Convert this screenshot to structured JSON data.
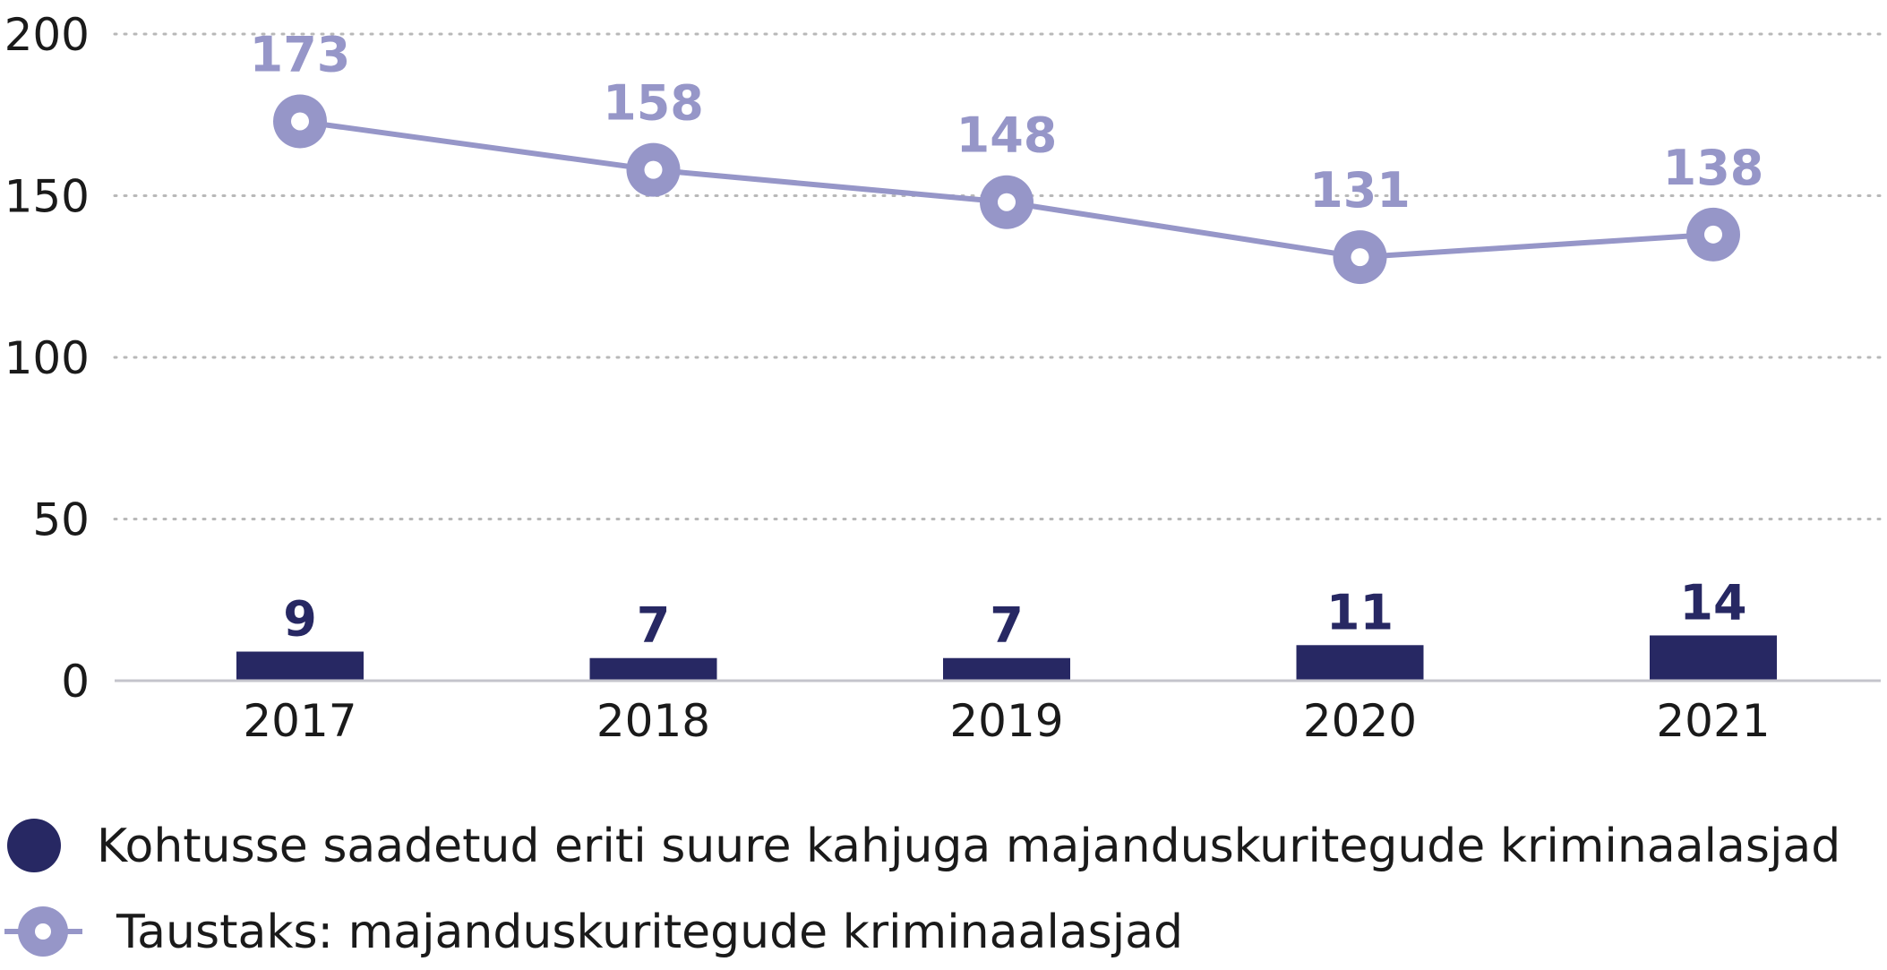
{
  "chart_data": {
    "type": "bar",
    "categories": [
      "2017",
      "2018",
      "2019",
      "2020",
      "2021"
    ],
    "series": [
      {
        "name": "Kohtusse saadetud eriti suure kahjuga majanduskuritegude kriminaalasjad",
        "type": "bar",
        "values": [
          9,
          7,
          7,
          11,
          14
        ],
        "color": "#272863"
      },
      {
        "name": "Taustaks: majanduskuritegude kriminaalasjad",
        "type": "line",
        "values": [
          173,
          158,
          148,
          131,
          138
        ],
        "color": "#9696c8"
      }
    ],
    "ylim": [
      0,
      200
    ],
    "yticks": [
      0,
      50,
      100,
      150,
      200
    ],
    "grid": true,
    "legend_position": "bottom-left",
    "xlabel": "",
    "ylabel": ""
  },
  "colors": {
    "axis": "#c4c4cc",
    "grid": "#b8b8b8",
    "text": "#1a1a1a"
  }
}
